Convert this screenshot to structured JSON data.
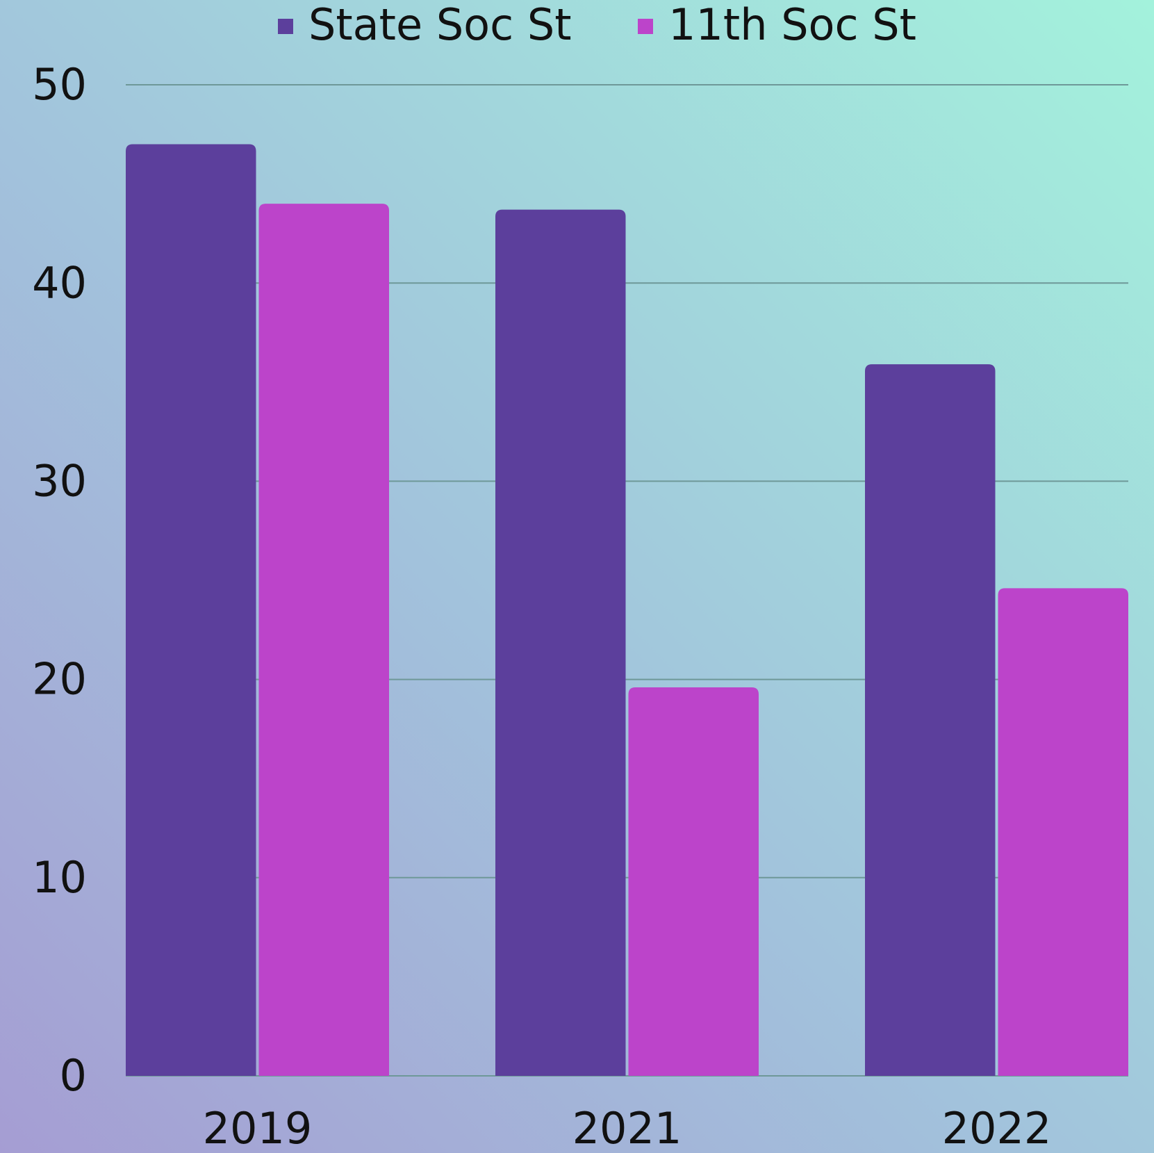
{
  "chart_data": {
    "type": "bar",
    "categories": [
      "2019",
      "2021",
      "2022"
    ],
    "series": [
      {
        "name": "State Soc St",
        "color": "#5c3f9c",
        "values": [
          47.0,
          43.7,
          35.9
        ]
      },
      {
        "name": "11th Soc St",
        "color": "#bc44ca",
        "values": [
          44.0,
          19.6,
          24.6
        ]
      }
    ],
    "ylim": [
      0,
      50
    ],
    "yticks": [
      0,
      10,
      20,
      30,
      40,
      50
    ],
    "grid": true,
    "legend": "top"
  }
}
